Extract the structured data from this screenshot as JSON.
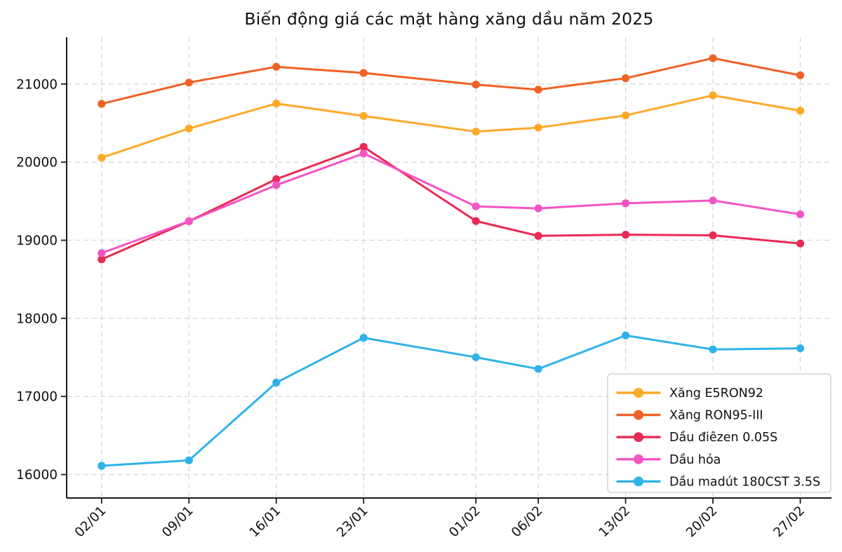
{
  "title": "Biến động giá các mặt hàng xăng dầu năm 2025",
  "chart_data": {
    "type": "line",
    "title": "Biến động giá các mặt hàng xăng dầu năm 2025",
    "xlabel": "",
    "ylabel": "",
    "grid": true,
    "grid_style": "dashed",
    "legend_position": "lower right",
    "x_tick_labels": [
      "02/01",
      "09/01",
      "16/01",
      "23/01",
      "01/02",
      "06/02",
      "13/02",
      "20/02",
      "27/02"
    ],
    "x_day_offsets": [
      0,
      7,
      14,
      21,
      30,
      35,
      42,
      49,
      56
    ],
    "y_ticks": [
      16000,
      17000,
      18000,
      19000,
      20000,
      21000
    ],
    "ylim": [
      15700,
      21600
    ],
    "series": [
      {
        "name": "Xăng E5RON92",
        "color": "#FFA928",
        "values": [
          20057,
          20431,
          20750,
          20592,
          20391,
          20442,
          20598,
          20855,
          20658
        ]
      },
      {
        "name": "Xăng RON95-III",
        "color": "#EF6125",
        "values": [
          20746,
          21019,
          21221,
          21142,
          20993,
          20928,
          21074,
          21331,
          21112
        ]
      },
      {
        "name": "Dầu điêzen 0.05S",
        "color": "#E92A55",
        "values": [
          18755,
          19243,
          19782,
          20195,
          19246,
          19056,
          19071,
          19063,
          18958
        ]
      },
      {
        "name": "Dầu hỏa",
        "color": "#F453C4",
        "values": [
          18835,
          19244,
          19706,
          20111,
          19434,
          19408,
          19473,
          19509,
          19332
        ]
      },
      {
        "name": "Dầu madút 180CST 3.5S",
        "color": "#30B2E9",
        "values": [
          16112,
          16182,
          17177,
          17751,
          17502,
          17352,
          17781,
          17602,
          17616
        ]
      }
    ]
  }
}
